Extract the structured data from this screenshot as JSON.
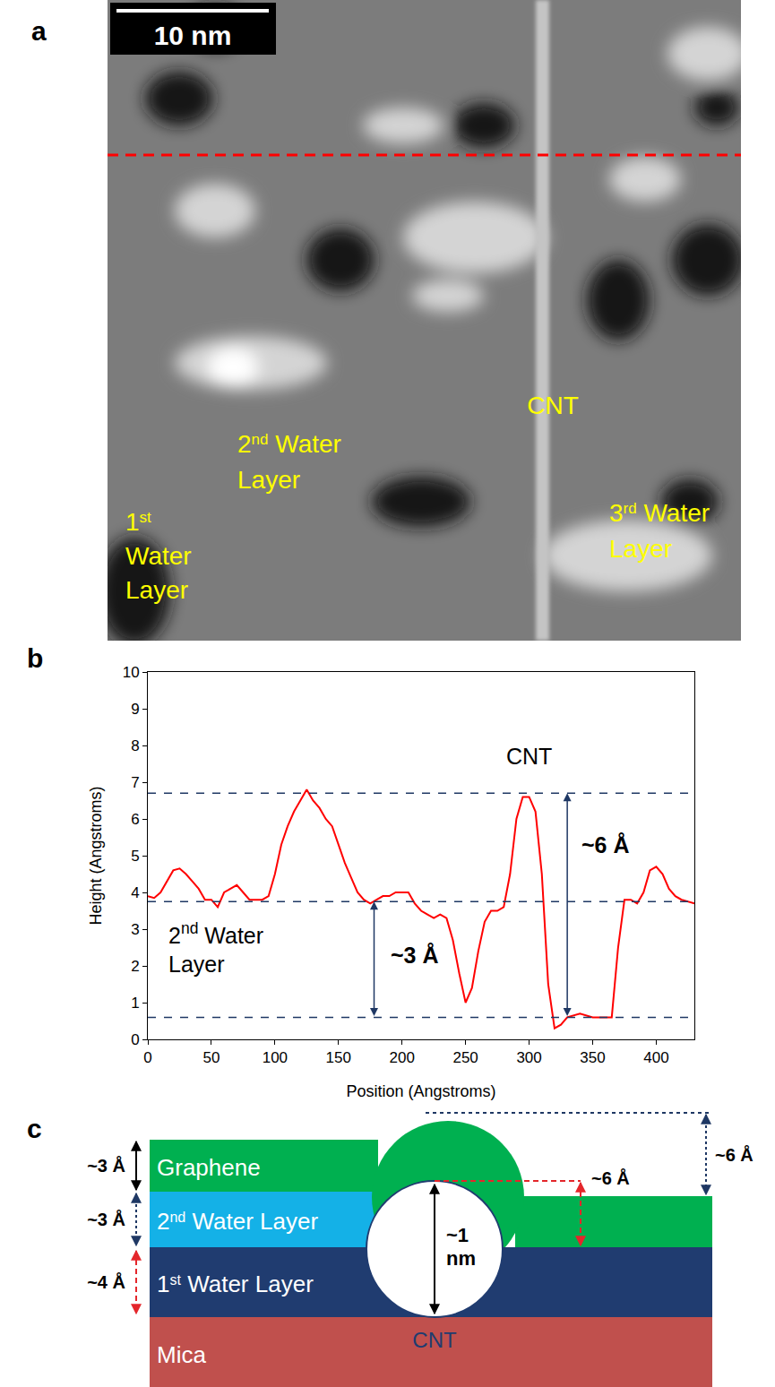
{
  "panel_labels": [
    "a",
    "b",
    "c"
  ],
  "image_panel": {
    "scale_bar": "10 nm",
    "labels": [
      {
        "lines": [
          "1st",
          "Water",
          "Layer"
        ]
      },
      {
        "lines": [
          "2nd Water",
          "Layer"
        ]
      },
      {
        "lines": [
          "CNT"
        ]
      },
      {
        "lines": [
          "3rd Water",
          "Layer"
        ]
      }
    ]
  },
  "chart_data": {
    "type": "line",
    "xlabel": "Position (Angstroms)",
    "ylabel": "Height (Angstroms)",
    "x": [
      0,
      5,
      10,
      15,
      20,
      25,
      30,
      35,
      40,
      45,
      50,
      55,
      60,
      65,
      70,
      75,
      80,
      85,
      90,
      95,
      100,
      105,
      110,
      115,
      120,
      125,
      130,
      135,
      140,
      145,
      150,
      155,
      160,
      165,
      170,
      175,
      180,
      185,
      190,
      195,
      200,
      205,
      210,
      215,
      220,
      225,
      230,
      235,
      240,
      245,
      250,
      255,
      260,
      265,
      270,
      275,
      280,
      285,
      290,
      295,
      300,
      305,
      310,
      315,
      320,
      325,
      330,
      340,
      350,
      360,
      365,
      370,
      375,
      380,
      385,
      390,
      395,
      400,
      405,
      410,
      415,
      420,
      425,
      430
    ],
    "values": [
      3.9,
      3.85,
      4.0,
      4.3,
      4.6,
      4.65,
      4.5,
      4.3,
      4.1,
      3.8,
      3.8,
      3.6,
      4.0,
      4.1,
      4.2,
      4.0,
      3.8,
      3.8,
      3.8,
      3.9,
      4.5,
      5.3,
      5.8,
      6.2,
      6.5,
      6.8,
      6.5,
      6.3,
      6.0,
      5.8,
      5.3,
      4.8,
      4.4,
      4.0,
      3.8,
      3.7,
      3.8,
      3.9,
      3.9,
      4.0,
      4.0,
      4.0,
      3.7,
      3.5,
      3.4,
      3.3,
      3.4,
      3.3,
      2.7,
      1.8,
      1.0,
      1.4,
      2.4,
      3.2,
      3.5,
      3.5,
      3.6,
      4.5,
      6.0,
      6.6,
      6.6,
      6.2,
      4.5,
      1.5,
      0.3,
      0.4,
      0.6,
      0.7,
      0.6,
      0.6,
      0.6,
      2.5,
      3.8,
      3.8,
      3.7,
      4.0,
      4.6,
      4.7,
      4.5,
      4.1,
      3.9,
      3.8,
      3.75,
      3.7
    ],
    "color": "#ff0000",
    "xlim": [
      0,
      430
    ],
    "ylim": [
      0,
      10
    ],
    "xticks": [
      0,
      50,
      100,
      150,
      200,
      250,
      300,
      350,
      400
    ],
    "yticks": [
      0,
      1,
      2,
      3,
      4,
      5,
      6,
      7,
      8,
      9,
      10
    ],
    "grid": false,
    "reference_lines": [
      6.7,
      3.75,
      0.6
    ],
    "annotations": [
      {
        "lines": [
          "CNT"
        ],
        "x": 300,
        "y": 7.7
      },
      {
        "lines": [
          "2nd Water",
          "Layer"
        ],
        "x": 15,
        "y": 2.5
      }
    ],
    "arrows": [
      {
        "x": 178,
        "from": 0.6,
        "to": 3.75,
        "label": "~3 Å",
        "label_x": 210,
        "label_y": 2.3
      },
      {
        "x": 330,
        "from": 0.6,
        "to": 6.7,
        "label": "~6 Å",
        "label_x": 340,
        "label_y": 5.3
      }
    ]
  },
  "diagram": {
    "layers": [
      "Graphene",
      "2nd Water Layer",
      "1st Water Layer",
      "Mica"
    ],
    "tube": "CNT",
    "diameter": [
      "~1",
      "nm"
    ],
    "left_dimensions": [
      "~3 Å",
      "~3 Å",
      "~4 Å"
    ],
    "right_dimensions": [
      "~6 Å",
      "~6 Å"
    ]
  }
}
